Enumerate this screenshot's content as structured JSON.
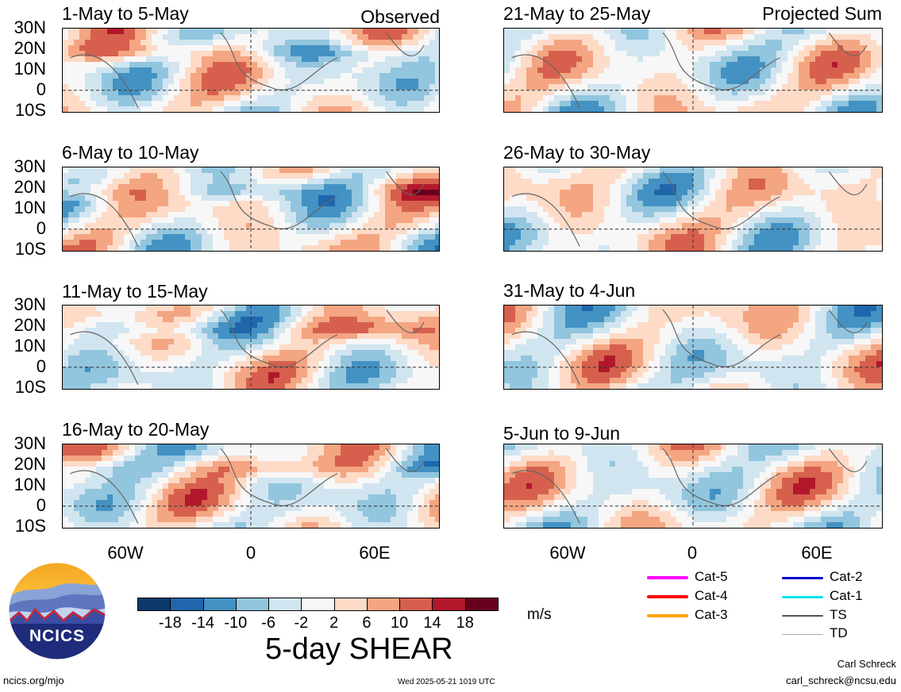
{
  "panels_left": [
    {
      "title": "1-May to 5-May",
      "corner": "Observed"
    },
    {
      "title": "6-May to 10-May",
      "corner": ""
    },
    {
      "title": "11-May to 15-May",
      "corner": ""
    },
    {
      "title": "16-May to 20-May",
      "corner": ""
    }
  ],
  "panels_right": [
    {
      "title": "21-May to 25-May",
      "corner": "Projected Sum"
    },
    {
      "title": "26-May to 30-May",
      "corner": ""
    },
    {
      "title": "31-May to 4-Jun",
      "corner": ""
    },
    {
      "title": "5-Jun to 9-Jun",
      "corner": ""
    }
  ],
  "lat_labels": [
    "30N",
    "20N",
    "10N",
    "0",
    "10S"
  ],
  "lon_labels": [
    "60W",
    "0",
    "60E"
  ],
  "colorbar": {
    "title": "5-day SHEAR",
    "unit": "m/s",
    "ticks": [
      "-18",
      "-14",
      "-10",
      "-6",
      "-2",
      "2",
      "6",
      "10",
      "14",
      "18"
    ],
    "colors": [
      "#0b3a6b",
      "#2066ac",
      "#4392c3",
      "#92c5de",
      "#d1e5f0",
      "#f7f7f7",
      "#fddbc7",
      "#f4a582",
      "#d6604d",
      "#b2182b",
      "#67001f"
    ]
  },
  "track_legend": [
    {
      "label": "Cat-5",
      "color": "#ff00ff"
    },
    {
      "label": "Cat-4",
      "color": "#ff0000"
    },
    {
      "label": "Cat-3",
      "color": "#ffa500"
    },
    {
      "label": "Cat-2",
      "color": "#0000cc"
    },
    {
      "label": "Cat-1",
      "color": "#00e5ee"
    },
    {
      "label": "TS",
      "color": "#555555"
    },
    {
      "label": "TD",
      "color": "#aaaaaa"
    }
  ],
  "logo": {
    "text": "NCICS"
  },
  "footer": {
    "left": "ncics.org/mjo",
    "center": "Wed 2025-05-21 1019 UTC",
    "author": "Carl Schreck",
    "email": "carl_schreck@ncsu.edu"
  }
}
